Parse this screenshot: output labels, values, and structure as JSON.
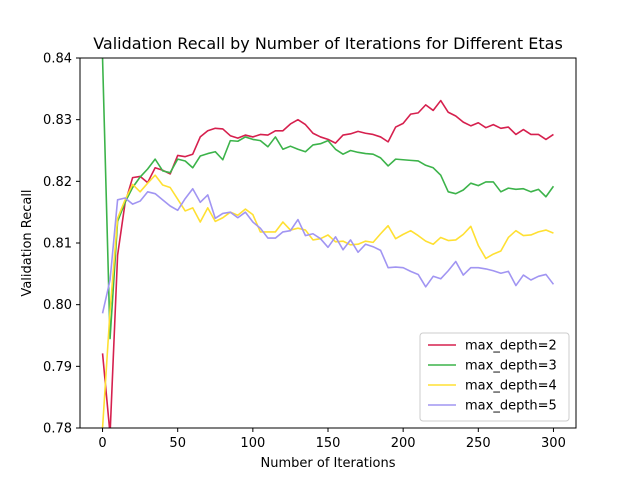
{
  "chart_data": {
    "type": "line",
    "title": "Validation Recall by Number of Iterations for Different Etas",
    "xlabel": "Number of Iterations",
    "ylabel": "Validation Recall",
    "xlim": [
      -15,
      315
    ],
    "ylim": [
      0.78,
      0.84
    ],
    "xticks": [
      0,
      50,
      100,
      150,
      200,
      250,
      300
    ],
    "yticks": [
      0.78,
      0.79,
      0.8,
      0.81,
      0.82,
      0.83,
      0.84
    ],
    "ytick_labels": [
      "0.78",
      "0.79",
      "0.80",
      "0.81",
      "0.82",
      "0.83",
      "0.84"
    ],
    "grid": false,
    "legend_position": "lower-right",
    "x": [
      0,
      5,
      10,
      15,
      20,
      25,
      30,
      35,
      40,
      45,
      50,
      55,
      60,
      65,
      70,
      75,
      80,
      85,
      90,
      95,
      100,
      105,
      110,
      115,
      120,
      125,
      130,
      135,
      140,
      145,
      150,
      155,
      160,
      165,
      170,
      175,
      180,
      185,
      190,
      195,
      200,
      205,
      210,
      215,
      220,
      225,
      230,
      235,
      240,
      245,
      250,
      255,
      260,
      265,
      270,
      275,
      280,
      285,
      290,
      295,
      300
    ],
    "series": [
      {
        "name": "max_depth=2",
        "color": "#d6204e",
        "values": [
          0.7921,
          0.779,
          0.808,
          0.8165,
          0.8206,
          0.8208,
          0.8198,
          0.8222,
          0.8218,
          0.8212,
          0.8242,
          0.824,
          0.8244,
          0.8272,
          0.8282,
          0.8286,
          0.8285,
          0.8274,
          0.827,
          0.8275,
          0.8272,
          0.8276,
          0.8275,
          0.8282,
          0.8282,
          0.8293,
          0.83,
          0.8292,
          0.8278,
          0.8272,
          0.8268,
          0.8262,
          0.8275,
          0.8277,
          0.8281,
          0.8278,
          0.8276,
          0.8272,
          0.8264,
          0.8288,
          0.8294,
          0.8309,
          0.8311,
          0.8324,
          0.8315,
          0.8331,
          0.8312,
          0.8306,
          0.8296,
          0.829,
          0.8295,
          0.8287,
          0.8292,
          0.8286,
          0.8288,
          0.8276,
          0.8284,
          0.8276,
          0.8276,
          0.8268,
          0.8276
        ]
      },
      {
        "name": "max_depth=3",
        "color": "#3cb34a",
        "values": [
          0.84,
          0.7945,
          0.8135,
          0.8166,
          0.819,
          0.8207,
          0.822,
          0.8236,
          0.8217,
          0.8214,
          0.8236,
          0.8233,
          0.8222,
          0.8241,
          0.8245,
          0.8248,
          0.8235,
          0.8266,
          0.8265,
          0.8272,
          0.8268,
          0.8266,
          0.8256,
          0.8272,
          0.8252,
          0.8257,
          0.8252,
          0.8248,
          0.8259,
          0.8261,
          0.8266,
          0.8252,
          0.8244,
          0.825,
          0.8247,
          0.8245,
          0.8244,
          0.8238,
          0.8225,
          0.8236,
          0.8235,
          0.8234,
          0.8233,
          0.8226,
          0.8222,
          0.821,
          0.8183,
          0.818,
          0.8186,
          0.8197,
          0.8193,
          0.8199,
          0.8199,
          0.8183,
          0.8189,
          0.8187,
          0.8188,
          0.8183,
          0.8187,
          0.8175,
          0.8192
        ]
      },
      {
        "name": "max_depth=4",
        "color": "#ffe033",
        "values": [
          0.78,
          0.799,
          0.814,
          0.817,
          0.8195,
          0.8183,
          0.8197,
          0.821,
          0.8194,
          0.819,
          0.8171,
          0.8152,
          0.8157,
          0.8134,
          0.8157,
          0.8135,
          0.8141,
          0.815,
          0.8145,
          0.8155,
          0.8146,
          0.8118,
          0.8118,
          0.8118,
          0.8134,
          0.8121,
          0.8124,
          0.8121,
          0.8105,
          0.8107,
          0.8113,
          0.8102,
          0.8103,
          0.8097,
          0.8098,
          0.8103,
          0.8101,
          0.8115,
          0.8128,
          0.8107,
          0.8114,
          0.812,
          0.8112,
          0.8103,
          0.8098,
          0.8109,
          0.8104,
          0.8105,
          0.8114,
          0.8127,
          0.8096,
          0.8075,
          0.8082,
          0.8087,
          0.8109,
          0.812,
          0.8112,
          0.8113,
          0.8118,
          0.8121,
          0.8116
        ]
      },
      {
        "name": "max_depth=5",
        "color": "#a195f2",
        "values": [
          0.7986,
          0.804,
          0.817,
          0.8173,
          0.8163,
          0.8168,
          0.8183,
          0.818,
          0.817,
          0.816,
          0.8153,
          0.8172,
          0.8188,
          0.8166,
          0.8178,
          0.814,
          0.8148,
          0.815,
          0.8141,
          0.815,
          0.8134,
          0.8124,
          0.8108,
          0.8108,
          0.8118,
          0.812,
          0.8138,
          0.8112,
          0.8115,
          0.8107,
          0.8093,
          0.811,
          0.8089,
          0.8105,
          0.8085,
          0.8098,
          0.8094,
          0.8088,
          0.806,
          0.8061,
          0.806,
          0.8054,
          0.8049,
          0.8029,
          0.8046,
          0.8042,
          0.8055,
          0.807,
          0.8048,
          0.806,
          0.806,
          0.8058,
          0.8055,
          0.8051,
          0.8054,
          0.8031,
          0.8048,
          0.804,
          0.8046,
          0.8049,
          0.8033
        ]
      }
    ]
  }
}
